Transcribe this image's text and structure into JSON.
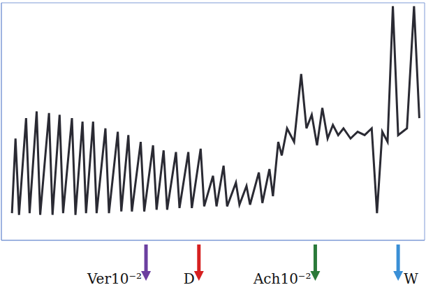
{
  "chart_data": {
    "type": "line",
    "grid": true,
    "tick_labels": false,
    "xlim": [
      0,
      24
    ],
    "ylim": [
      0,
      14
    ],
    "xticks": [
      0,
      1,
      2,
      3,
      4,
      5,
      6,
      7,
      8,
      9,
      10,
      11,
      12,
      13,
      14,
      15,
      16,
      17,
      18,
      19,
      20,
      21,
      22,
      23,
      24
    ],
    "yticks": [
      0,
      1,
      2,
      3,
      4,
      5,
      6,
      7,
      8,
      9,
      10,
      11,
      12,
      13,
      14
    ],
    "x": [
      0.6,
      0.8,
      1.0,
      1.4,
      1.6,
      2.0,
      2.2,
      2.7,
      2.9,
      3.3,
      3.5,
      4.0,
      4.2,
      4.6,
      4.8,
      5.2,
      5.4,
      5.9,
      6.1,
      6.6,
      6.8,
      7.2,
      7.4,
      7.9,
      8.1,
      8.6,
      8.8,
      9.2,
      9.4,
      9.9,
      10.1,
      10.6,
      10.8,
      11.3,
      11.5,
      12.0,
      12.2,
      12.6,
      12.8,
      13.3,
      13.5,
      13.9,
      14.1,
      14.6,
      14.8,
      15.2,
      15.4,
      15.7,
      15.9,
      16.2,
      16.6,
      17.0,
      17.3,
      17.6,
      17.9,
      18.2,
      18.5,
      18.8,
      19.1,
      19.4,
      19.8,
      20.2,
      20.6,
      21.0,
      21.3,
      21.6,
      21.9,
      22.2,
      22.5,
      23.0,
      23.4,
      23.7
    ],
    "values": [
      1.6,
      6.0,
      1.5,
      7.2,
      1.6,
      7.6,
      1.5,
      7.5,
      1.5,
      7.4,
      1.6,
      7.2,
      1.5,
      7.0,
      1.6,
      7.0,
      1.6,
      6.6,
      1.6,
      6.4,
      1.7,
      6.2,
      1.7,
      5.8,
      1.7,
      5.6,
      1.8,
      5.3,
      1.8,
      5.2,
      1.9,
      5.2,
      1.9,
      5.4,
      2.0,
      3.8,
      2.0,
      4.4,
      2.0,
      3.4,
      2.1,
      3.2,
      2.1,
      4.0,
      2.2,
      4.2,
      2.6,
      5.8,
      5.0,
      6.6,
      5.8,
      9.8,
      6.6,
      7.4,
      5.6,
      7.8,
      6.0,
      6.8,
      6.2,
      6.6,
      6.0,
      6.4,
      6.2,
      6.6,
      1.6,
      6.4,
      5.8,
      13.8,
      6.2,
      6.6,
      13.8,
      7.2
    ],
    "color": "#2a2a33",
    "annotations": [
      {
        "x": 8.2,
        "text": "Ver10⁻²",
        "color": "#6b3fa0"
      },
      {
        "x": 11.2,
        "text": "D",
        "color": "#d62020"
      },
      {
        "x": 17.8,
        "text": "Ach10⁻²",
        "color": "#2a7a3a"
      },
      {
        "x": 22.5,
        "text": "W",
        "color": "#3a8fd6"
      }
    ]
  }
}
